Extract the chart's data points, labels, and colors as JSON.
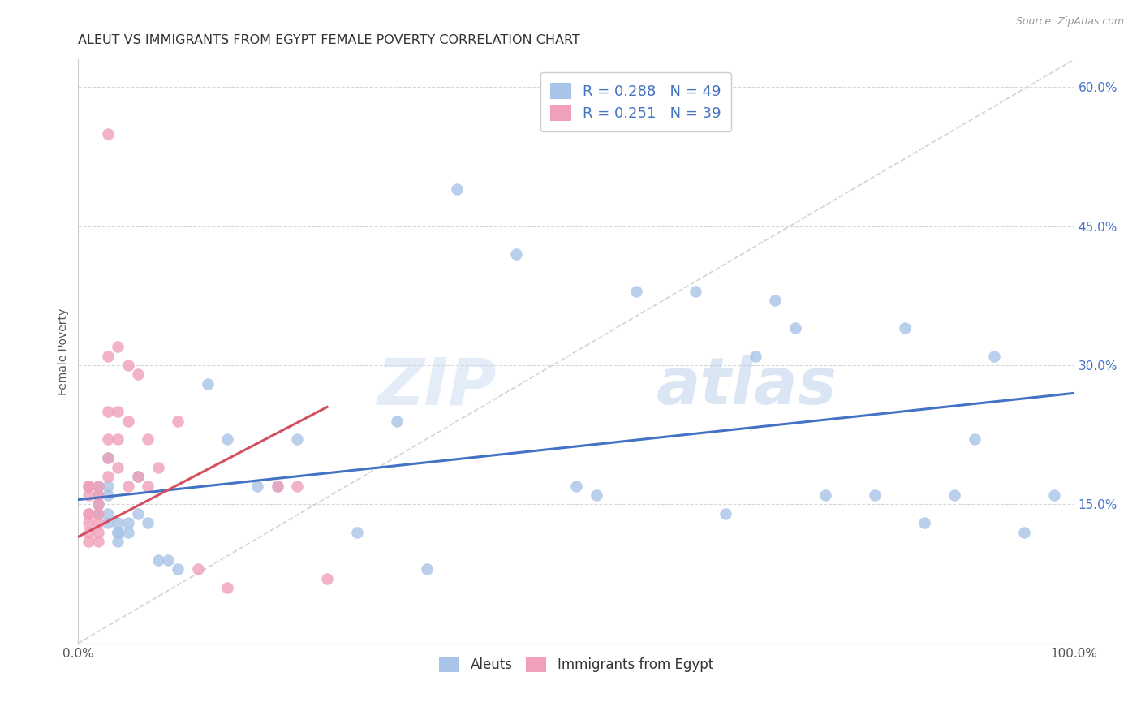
{
  "title": "ALEUT VS IMMIGRANTS FROM EGYPT FEMALE POVERTY CORRELATION CHART",
  "source": "Source: ZipAtlas.com",
  "ylabel": "Female Poverty",
  "yticks": [
    0.0,
    0.15,
    0.3,
    0.45,
    0.6
  ],
  "ytick_labels": [
    "",
    "15.0%",
    "30.0%",
    "45.0%",
    "60.0%"
  ],
  "xlim": [
    0.0,
    1.0
  ],
  "ylim": [
    0.0,
    0.63
  ],
  "legend_label1": "Aleuts",
  "legend_label2": "Immigrants from Egypt",
  "blue_color": "#a8c4e8",
  "pink_color": "#f0a0b8",
  "blue_line_color": "#4472c4",
  "pink_line_color": "#d45060",
  "diag_line_color": "#c8c8c8",
  "watermark_zip": "ZIP",
  "watermark_atlas": "atlas",
  "aleuts_x": [
    0.01,
    0.02,
    0.02,
    0.02,
    0.02,
    0.03,
    0.03,
    0.03,
    0.03,
    0.03,
    0.04,
    0.04,
    0.04,
    0.04,
    0.05,
    0.05,
    0.06,
    0.06,
    0.07,
    0.08,
    0.09,
    0.1,
    0.13,
    0.15,
    0.18,
    0.2,
    0.22,
    0.28,
    0.32,
    0.35,
    0.38,
    0.44,
    0.5,
    0.52,
    0.56,
    0.62,
    0.65,
    0.68,
    0.7,
    0.72,
    0.75,
    0.8,
    0.83,
    0.85,
    0.88,
    0.9,
    0.92,
    0.95,
    0.98
  ],
  "aleuts_y": [
    0.17,
    0.17,
    0.16,
    0.15,
    0.14,
    0.2,
    0.17,
    0.16,
    0.14,
    0.13,
    0.13,
    0.12,
    0.12,
    0.11,
    0.13,
    0.12,
    0.18,
    0.14,
    0.13,
    0.09,
    0.09,
    0.08,
    0.28,
    0.22,
    0.17,
    0.17,
    0.22,
    0.12,
    0.24,
    0.08,
    0.49,
    0.42,
    0.17,
    0.16,
    0.38,
    0.38,
    0.14,
    0.31,
    0.37,
    0.34,
    0.16,
    0.16,
    0.34,
    0.13,
    0.16,
    0.22,
    0.31,
    0.12,
    0.16
  ],
  "egypt_x": [
    0.01,
    0.01,
    0.01,
    0.01,
    0.01,
    0.01,
    0.01,
    0.01,
    0.02,
    0.02,
    0.02,
    0.02,
    0.02,
    0.02,
    0.02,
    0.03,
    0.03,
    0.03,
    0.03,
    0.03,
    0.03,
    0.04,
    0.04,
    0.04,
    0.04,
    0.05,
    0.05,
    0.05,
    0.06,
    0.06,
    0.07,
    0.07,
    0.08,
    0.1,
    0.12,
    0.15,
    0.2,
    0.22,
    0.25
  ],
  "egypt_y": [
    0.17,
    0.17,
    0.16,
    0.14,
    0.14,
    0.13,
    0.12,
    0.11,
    0.17,
    0.16,
    0.15,
    0.14,
    0.13,
    0.12,
    0.11,
    0.55,
    0.31,
    0.25,
    0.22,
    0.2,
    0.18,
    0.32,
    0.25,
    0.22,
    0.19,
    0.3,
    0.24,
    0.17,
    0.29,
    0.18,
    0.22,
    0.17,
    0.19,
    0.24,
    0.08,
    0.06,
    0.17,
    0.17,
    0.07
  ],
  "blue_trend_x": [
    0.0,
    1.0
  ],
  "blue_trend_y": [
    0.155,
    0.27
  ],
  "pink_trend_x": [
    0.0,
    0.25
  ],
  "pink_trend_y": [
    0.115,
    0.255
  ]
}
